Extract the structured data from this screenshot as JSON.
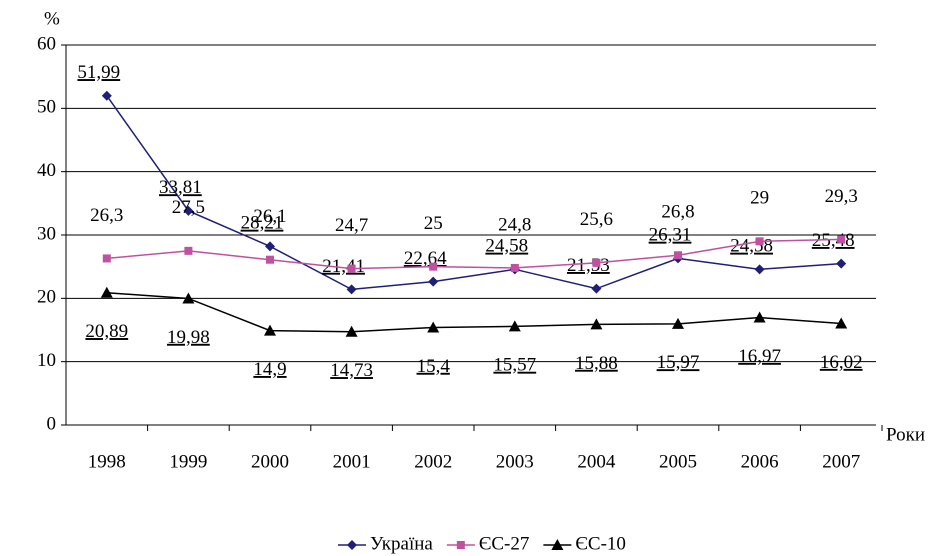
{
  "chart_data": {
    "type": "line",
    "y_label": "%",
    "x_label": "Роки",
    "categories": [
      "1998",
      "1999",
      "2000",
      "2001",
      "2002",
      "2003",
      "2004",
      "2005",
      "2006",
      "2007"
    ],
    "series": [
      {
        "name": "Україна",
        "color": "#1f1f7a",
        "marker": "diamond",
        "values": [
          51.99,
          33.81,
          28.21,
          21.41,
          22.64,
          24.58,
          21.53,
          26.31,
          24.58,
          25.48
        ],
        "value_labels": [
          "51,99",
          "33,81",
          "28,21",
          "21,41",
          "22,64",
          "24,58",
          "21,53",
          "26,31",
          "24,58",
          "25,48"
        ]
      },
      {
        "name": "ЄС-27",
        "color": "#c050a0",
        "marker": "square",
        "values": [
          26.3,
          27.5,
          26.1,
          24.7,
          25,
          24.8,
          25.6,
          26.8,
          29,
          29.3
        ],
        "value_labels": [
          "26,3",
          "27,5",
          "26,1",
          "24,7",
          "25",
          "24,8",
          "25,6",
          "26,8",
          "29",
          "29,3"
        ]
      },
      {
        "name": "ЄС-10",
        "color": "#000000",
        "marker": "triangle",
        "values": [
          20.89,
          19.98,
          14.9,
          14.73,
          15.4,
          15.57,
          15.88,
          15.97,
          16.97,
          16.02
        ],
        "value_labels": [
          "20,89",
          "19,98",
          "14,9",
          "14,73",
          "15,4",
          "15,57",
          "15,88",
          "15,97",
          "16,97",
          "16,02"
        ]
      }
    ],
    "ylim": [
      0,
      60
    ],
    "yticks": [
      0,
      10,
      20,
      30,
      40,
      50,
      60
    ],
    "grid": true,
    "legend": "bottom"
  }
}
